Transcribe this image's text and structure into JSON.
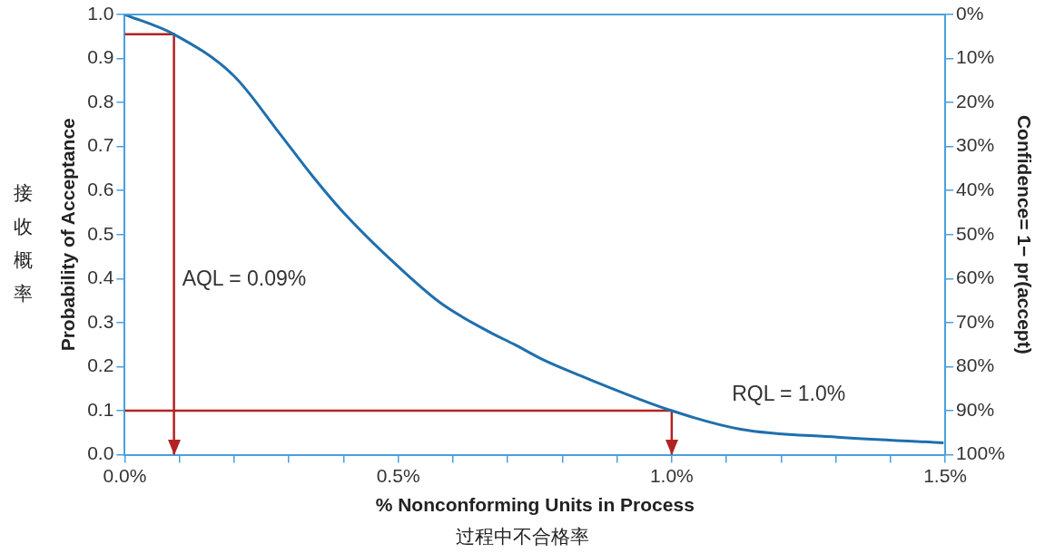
{
  "chart_data": {
    "type": "line",
    "xlabel": "% Nonconforming Units in Process",
    "ylabel": "Probability of Acceptance",
    "y2label": "Confidence= 1− pr(accept)",
    "x": [
      0,
      0.09,
      0.2,
      0.283,
      0.342,
      0.4,
      0.489,
      0.577,
      0.665,
      0.713,
      0.766,
      0.832,
      1.0,
      1.126,
      1.303,
      1.497
    ],
    "series": [
      {
        "color": "#1f6fae",
        "values": [
          1.0,
          0.955,
          0.86,
          0.73,
          0.635,
          0.55,
          0.44,
          0.345,
          0.28,
          0.25,
          0.215,
          0.18,
          0.1,
          0.058,
          0.04,
          0.027
        ]
      },
      {
        "color": "#b22222",
        "x": [
          0,
          0.09,
          0.09
        ],
        "values": [
          0.955,
          0.955,
          0
        ]
      },
      {
        "color": "#b22222",
        "x": [
          0,
          1.0,
          1.0
        ],
        "values": [
          0.1,
          0.1,
          0
        ]
      }
    ],
    "marker": "none",
    "legend": false,
    "xlim": [
      0,
      1.5
    ],
    "xticks": [
      {
        "value": 0,
        "label": "0.0%"
      },
      {
        "value": 0.1,
        "label": null
      },
      {
        "value": 0.2,
        "label": null
      },
      {
        "value": 0.3,
        "label": null
      },
      {
        "value": 0.4,
        "label": null
      },
      {
        "value": 0.5,
        "label": "0.5%"
      },
      {
        "value": 0.6,
        "label": null
      },
      {
        "value": 0.7,
        "label": null
      },
      {
        "value": 0.8,
        "label": null
      },
      {
        "value": 0.9,
        "label": null
      },
      {
        "value": 1.0,
        "label": "1.0%"
      },
      {
        "value": 1.1,
        "label": null
      },
      {
        "value": 1.2,
        "label": null
      },
      {
        "value": 1.3,
        "label": null
      },
      {
        "value": 1.4,
        "label": null
      },
      {
        "value": 1.5,
        "label": "1.5%"
      }
    ],
    "ylim": [
      0,
      1.0
    ],
    "yticks": [
      {
        "value": 0,
        "label": "0.0"
      },
      0.1,
      0.2,
      0.3,
      0.4,
      0.5,
      0.6,
      0.7,
      0.8,
      0.9,
      {
        "value": 1,
        "label": "1.0"
      }
    ],
    "y2lim": [
      100,
      0
    ],
    "y2ticks": [
      {
        "value": 0,
        "label": "0%"
      },
      {
        "value": 10,
        "label": "10%"
      },
      {
        "value": 20,
        "label": "20%"
      },
      {
        "value": 30,
        "label": "30%"
      },
      {
        "value": 40,
        "label": "40%"
      },
      {
        "value": 50,
        "label": "50%"
      },
      {
        "value": 60,
        "label": "60%"
      },
      {
        "value": 70,
        "label": "70%"
      },
      {
        "value": 80,
        "label": "80%"
      },
      {
        "value": 90,
        "label": "90%"
      },
      {
        "value": 100,
        "label": "100%"
      }
    ],
    "annotations": [
      "AQL = 0.09%",
      "RQL = 1.0%",
      "接收概率",
      "过程中不合格率"
    ]
  }
}
